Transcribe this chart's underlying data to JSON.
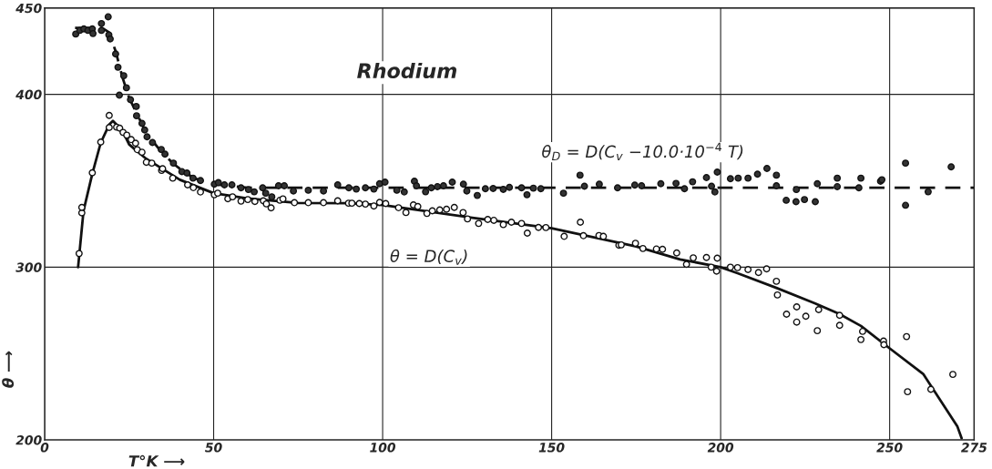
{
  "chart_data": {
    "type": "scatter",
    "title": "Rhodium",
    "xlabel": "T°K ⟶",
    "ylabel": "θ ⟶",
    "xlim": [
      0,
      275
    ],
    "ylim": [
      200,
      450
    ],
    "xticks": [
      0,
      50,
      100,
      150,
      200,
      250,
      275
    ],
    "yticks": [
      200,
      300,
      400,
      450
    ],
    "grid": true,
    "annotations": [
      {
        "text": "θ$_{D}$ = D(C$_{v}$ −10.0·10$^{−4}$ T)",
        "x": 177,
        "y": 346
      },
      {
        "text": "θ = D(C$_{v}$)",
        "x": 125,
        "y": 329
      }
    ],
    "series": [
      {
        "type": "line",
        "line_style": "dashed",
        "marker": "none",
        "color": "#111111",
        "x": [
          9,
          17,
          19,
          21,
          23,
          25,
          27,
          30,
          34,
          38,
          42,
          46,
          50,
          55,
          60,
          70,
          275
        ],
        "values": [
          438.5,
          438.5,
          436,
          425,
          410,
          398,
          390,
          378,
          368,
          360,
          354,
          350,
          348,
          347,
          346,
          346,
          346
        ]
      },
      {
        "type": "line",
        "line_style": "solid",
        "marker": "none",
        "color": "#111111",
        "x": [
          9.9,
          11.5,
          14.1,
          16.6,
          19.1,
          20.2,
          23,
          25,
          30,
          40,
          50,
          60,
          75,
          90,
          100,
          125,
          150,
          175,
          188,
          200,
          205,
          216.5,
          228,
          235,
          241.5,
          250,
          260,
          270,
          271.3
        ],
        "values": [
          300,
          332.5,
          354,
          372,
          382.5,
          384.6,
          379,
          371,
          362.8,
          350.6,
          342.8,
          339.8,
          337.2,
          337,
          336,
          329,
          322.5,
          312,
          304.5,
          300,
          296.5,
          288,
          279,
          273,
          266,
          253,
          238,
          208,
          201
        ]
      },
      {
        "marker": "circle",
        "color": "#333333",
        "x": [
          9.2,
          10.4,
          11.6,
          12.8,
          14.1,
          14.3,
          16.8,
          16.8,
          18.8,
          19.0,
          19.4,
          21.0,
          21.7,
          23.4,
          22.1,
          24.2,
          25.4,
          27.1,
          27.2,
          28.8,
          29.6,
          30.3,
          31.9,
          34.5,
          35.6,
          38.1,
          40.6,
          42.1,
          43.9,
          46.1,
          50.2,
          51.4,
          53.2,
          55.4,
          58.1,
          60.3,
          62.0,
          64.5,
          65.4,
          67.2,
          69.2,
          70.9,
          73.6,
          78.0,
          82.5,
          86.7,
          90.0,
          92.2,
          94.9,
          97.4,
          99.1,
          100.7,
          104.2,
          106.4,
          109.4,
          110.0,
          112.7,
          114.4,
          116.2,
          118.0,
          120.6,
          123.9,
          124.9,
          128.0,
          130.4,
          132.7,
          135.7,
          137.5,
          141.1,
          142.7,
          144.6,
          146.8,
          153.5,
          158.4,
          159.7,
          164.1,
          169.5,
          174.6,
          176.6,
          182.3,
          186.8,
          189.3,
          191.7,
          195.8,
          197.3,
          198.3,
          199.0,
          202.9,
          205.2,
          208.1,
          210.9,
          213.7,
          216.5,
          216.5,
          219.4,
          222.3,
          222.4,
          224.8,
          228.0,
          228.6,
          234.5,
          234.5,
          240.9,
          241.5,
          247.3,
          247.7,
          254.7,
          254.7,
          261.4,
          268.2
        ],
        "values": [
          434.9,
          437,
          437.9,
          437,
          437.9,
          435.2,
          441,
          437,
          444.9,
          434.4,
          432.1,
          423.4,
          415.7,
          410.8,
          399.5,
          403.8,
          396.9,
          393,
          387.6,
          383.2,
          379.4,
          375.4,
          372.1,
          368.1,
          365.4,
          360.2,
          355.3,
          354.5,
          351.5,
          350.1,
          348,
          348.9,
          347.6,
          347.6,
          345.9,
          344.9,
          343.6,
          345.9,
          342.8,
          340.7,
          347.1,
          347.1,
          344.1,
          344.5,
          344.1,
          347.6,
          345.9,
          345.2,
          345.9,
          345.2,
          348.3,
          349.2,
          344.5,
          343.5,
          349.7,
          347.1,
          343.6,
          345.9,
          346.6,
          347.1,
          349.2,
          348,
          344.1,
          341.5,
          345.4,
          345.5,
          345,
          346.2,
          345.9,
          341.9,
          345.7,
          345.4,
          342.8,
          353.2,
          346.8,
          348,
          345.9,
          347.5,
          347.1,
          348.3,
          348.5,
          345.4,
          349.4,
          351.8,
          346.8,
          343.5,
          355,
          351.2,
          351.5,
          351.5,
          353.8,
          357.1,
          353.2,
          347.1,
          338.7,
          337.9,
          344.9,
          339.1,
          337.9,
          348.3,
          351.5,
          346.6,
          345.9,
          351.5,
          349.7,
          350.6,
          360.2,
          335.8,
          343.6,
          358
        ]
      },
      {
        "marker": "circle",
        "color": "#ffffff",
        "x": [
          10.2,
          11.0,
          11.0,
          14.1,
          16.6,
          19.1,
          19.1,
          21.3,
          22.2,
          23.2,
          24.3,
          25.6,
          26.9,
          27.4,
          28.8,
          30.1,
          31.7,
          34.6,
          34.9,
          37.9,
          42.3,
          44.0,
          46.1,
          50.2,
          51.2,
          54.2,
          55.6,
          58.1,
          60.1,
          62.2,
          64.7,
          65.6,
          67.0,
          69.6,
          70.5,
          73.9,
          78.0,
          82.5,
          86.7,
          89.9,
          90.9,
          93.1,
          94.9,
          97.4,
          99.1,
          100.9,
          104.7,
          106.9,
          109.1,
          110.4,
          113.1,
          114.7,
          116.9,
          118.9,
          121.2,
          123.8,
          125.1,
          128.4,
          131.1,
          132.9,
          135.7,
          138.1,
          141.1,
          142.8,
          146.1,
          148.3,
          153.7,
          158.5,
          159.4,
          164.0,
          165.3,
          169.9,
          170.6,
          174.8,
          177.0,
          181.0,
          182.8,
          187.0,
          189.9,
          191.9,
          195.8,
          197.2,
          198.8,
          199.0,
          202.9,
          205.0,
          208.1,
          211.2,
          213.6,
          216.5,
          216.8,
          219.5,
          222.5,
          222.5,
          225.2,
          228.6,
          229.0,
          235.2,
          235.2,
          241.5,
          242.0,
          248.2,
          248.3,
          255.0,
          255.3,
          262.2,
          268.7
        ],
        "values": [
          307.9,
          331.4,
          334.6,
          354.6,
          372.4,
          387.8,
          380.8,
          381,
          380.4,
          378,
          376.4,
          373.8,
          371.7,
          368,
          366.5,
          360.7,
          360.2,
          356,
          357,
          351.5,
          347.6,
          346,
          343.5,
          341.9,
          342.8,
          339.6,
          340.7,
          338.2,
          339.1,
          338,
          338.4,
          336.6,
          334.3,
          338.7,
          339.5,
          337.3,
          337.3,
          337.3,
          338.4,
          337,
          337,
          336.8,
          336.5,
          335.4,
          337.5,
          336.8,
          334.4,
          331.6,
          336,
          335.1,
          331.1,
          332.6,
          333.1,
          333.5,
          334.6,
          331.6,
          327.9,
          325.3,
          327.6,
          327.1,
          324.6,
          326,
          325.3,
          319.7,
          323,
          322.9,
          317.8,
          326,
          318.2,
          318.3,
          317.8,
          312.7,
          312.9,
          313.8,
          310.8,
          310.5,
          310.3,
          308.2,
          301.6,
          305.4,
          305.6,
          300,
          297.7,
          305.2,
          300,
          299.7,
          298.6,
          296.9,
          299,
          291.8,
          283.9,
          272.8,
          277,
          268.2,
          271.6,
          263.2,
          275.4,
          272.1,
          266.3,
          258.1,
          262.8,
          257.2,
          255.1,
          259.8,
          227.9,
          229.3,
          237.9
        ]
      }
    ]
  }
}
